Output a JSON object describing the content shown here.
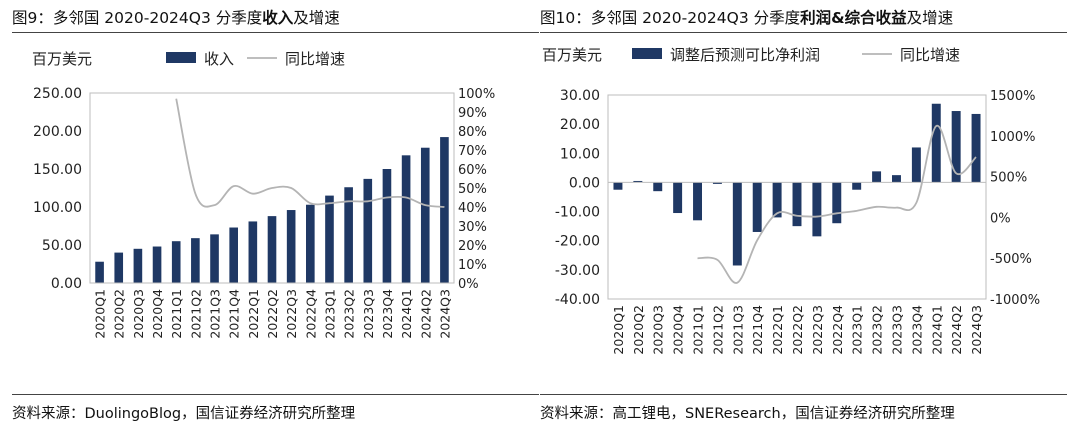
{
  "bar_color": "#1f3864",
  "line_color": "#b4b4b4",
  "chart_data": [
    {
      "type": "bar",
      "title_plain": "图9：多邻国 2020-2024Q3 分季度",
      "title_bold": "收入",
      "title_tail": "及增速",
      "unit_label": "百万美元",
      "legend": [
        "收入",
        "同比增速"
      ],
      "legend_placement": "top",
      "source": "资料来源：DuolingoBlog，国信证券经济研究所整理",
      "categories": [
        "2020Q1",
        "2020Q2",
        "2020Q3",
        "2020Q4",
        "2021Q1",
        "2021Q2",
        "2021Q3",
        "2021Q4",
        "2022Q1",
        "2022Q2",
        "2022Q3",
        "2022Q4",
        "2023Q1",
        "2023Q2",
        "2023Q3",
        "2023Q4",
        "2024Q1",
        "2024Q2",
        "2024Q3"
      ],
      "left_ticks": [
        "0.00",
        "50.00",
        "100.00",
        "150.00",
        "200.00",
        "250.00"
      ],
      "right_ticks": [
        "0%",
        "10%",
        "20%",
        "30%",
        "40%",
        "50%",
        "60%",
        "70%",
        "80%",
        "90%",
        "100%"
      ],
      "ylim": [
        0,
        250
      ],
      "y2lim": [
        0,
        100
      ],
      "series": [
        {
          "name": "收入",
          "kind": "bar",
          "axis": "left",
          "values": [
            28,
            40,
            45,
            48,
            55,
            59,
            64,
            73,
            81,
            88,
            96,
            103,
            115,
            126,
            137,
            150,
            168,
            178,
            192
          ]
        },
        {
          "name": "同比增速",
          "kind": "line",
          "axis": "right",
          "values": [
            null,
            null,
            null,
            null,
            97,
            47,
            41,
            51,
            47,
            50,
            50,
            42,
            42,
            43,
            43,
            45,
            45,
            41,
            40
          ]
        }
      ]
    },
    {
      "type": "bar",
      "title_plain": "图10：多邻国 2020-2024Q3 分季度",
      "title_bold": "利润&综合收益",
      "title_tail": "及增速",
      "unit_label": "百万美元",
      "legend": [
        "调整后预测可比净利润",
        "同比增速"
      ],
      "legend_placement": "top",
      "source": "资料来源：高工锂电，SNEResearch，国信证券经济研究所整理",
      "categories": [
        "2020Q1",
        "2020Q2",
        "2020Q3",
        "2020Q4",
        "2021Q1",
        "2021Q2",
        "2021Q3",
        "2021Q4",
        "2022Q1",
        "2022Q2",
        "2022Q3",
        "2022Q4",
        "2023Q1",
        "2023Q2",
        "2023Q3",
        "2023Q4",
        "2024Q1",
        "2024Q2",
        "2024Q3"
      ],
      "left_ticks": [
        "-40.00",
        "-30.00",
        "-20.00",
        "-10.00",
        "0.00",
        "10.00",
        "20.00",
        "30.00"
      ],
      "right_ticks": [
        "-1000%",
        "-500%",
        "0%",
        "500%",
        "1000%",
        "1500%"
      ],
      "ylim": [
        -40,
        30
      ],
      "y2lim": [
        -1000,
        1500
      ],
      "series": [
        {
          "name": "调整后预测可比净利润",
          "kind": "bar",
          "axis": "left",
          "values": [
            -2.5,
            0.5,
            -3,
            -10.5,
            -13,
            -0.5,
            -28.5,
            -17,
            -12,
            -15,
            -18.5,
            -14,
            -2.5,
            3.8,
            2.5,
            12,
            27,
            24.5,
            23.5
          ]
        },
        {
          "name": "同比增速",
          "kind": "line",
          "axis": "right",
          "values": [
            null,
            null,
            null,
            null,
            -500,
            -520,
            -800,
            -280,
            50,
            20,
            10,
            50,
            80,
            130,
            120,
            180,
            1120,
            540,
            740
          ]
        }
      ]
    }
  ]
}
